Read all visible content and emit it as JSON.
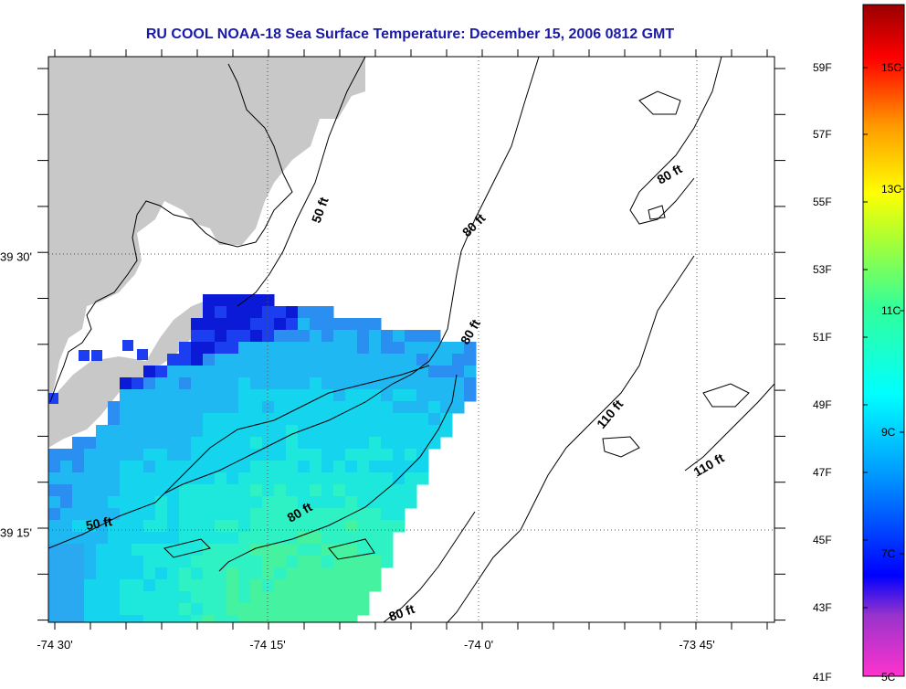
{
  "title": "RU COOL  NOAA-18  Sea Surface Temperature:  December 15, 2006 0812 GMT",
  "axes": {
    "x_ticks": [
      "-74 30'",
      "-74 15'",
      "-74 0'",
      "-73 45'"
    ],
    "y_ticks": [
      "39 30'",
      "39 15'"
    ]
  },
  "contour_labels": [
    "50 ft",
    "80 ft",
    "80 ft",
    "80 ft",
    "110 ft",
    "110 ft",
    "50 ft",
    "80 ft",
    "80 ft"
  ],
  "colorbar": {
    "fahrenheit": [
      "59F",
      "57F",
      "55F",
      "53F",
      "51F",
      "49F",
      "47F",
      "45F",
      "43F",
      "41F"
    ],
    "celsius": [
      "15C",
      "13C",
      "11C",
      "9C",
      "7C",
      "5C"
    ]
  },
  "colors": {
    "title": "#1a1aa6",
    "land": "#c8c8c8",
    "no_data": "#ffffff"
  }
}
